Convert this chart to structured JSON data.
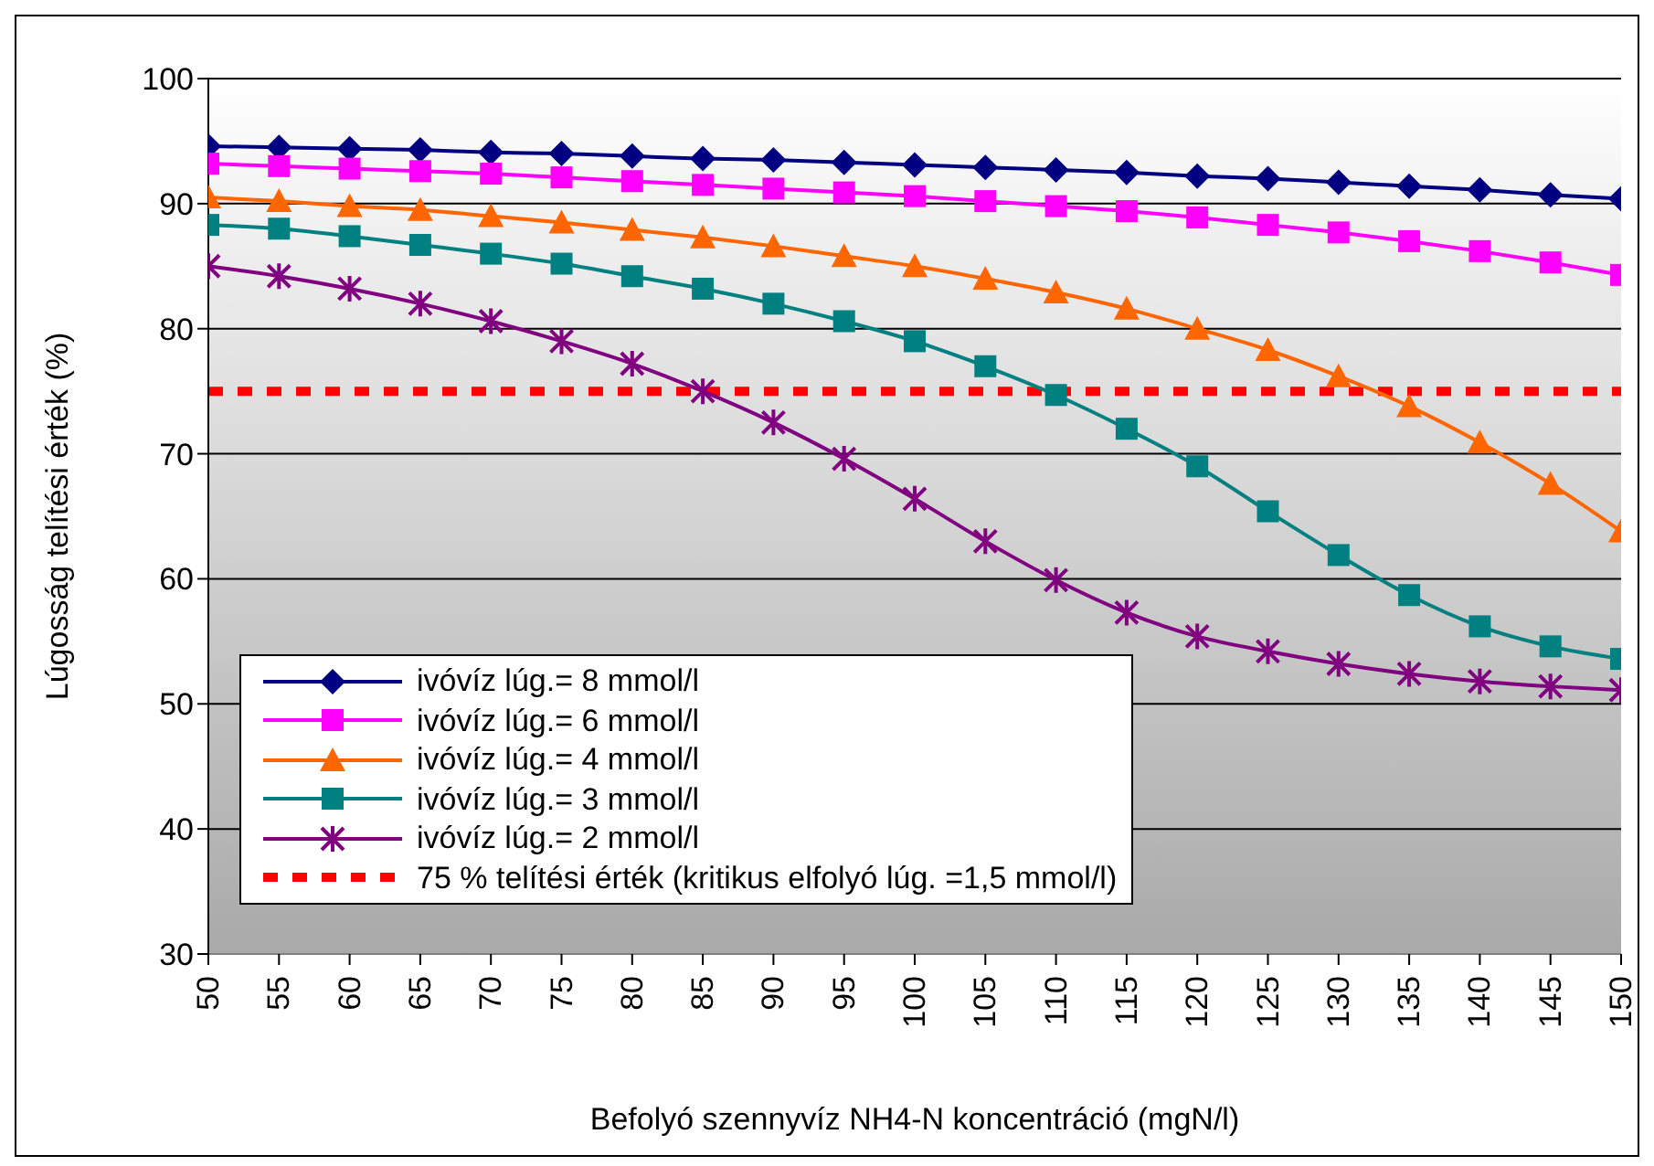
{
  "chart_data": {
    "type": "line",
    "xlabel": "Befolyó szennyvíz NH4-N koncentráció (mgN/l)",
    "ylabel": "Lúgosság telítési érték (%)",
    "x": [
      50,
      55,
      60,
      65,
      70,
      75,
      80,
      85,
      90,
      95,
      100,
      105,
      110,
      115,
      120,
      125,
      130,
      135,
      140,
      145,
      150
    ],
    "series": [
      {
        "name": "ivóvíz lúg.= 8 mmol/l",
        "color": "#000080",
        "marker": "diamond",
        "values": [
          94.6,
          94.5,
          94.4,
          94.3,
          94.1,
          94.0,
          93.8,
          93.6,
          93.5,
          93.3,
          93.1,
          92.9,
          92.7,
          92.5,
          92.2,
          92.0,
          91.7,
          91.4,
          91.1,
          90.7,
          90.4
        ]
      },
      {
        "name": "ivóvíz lúg.= 6 mmol/l",
        "color": "#ff00ff",
        "marker": "square",
        "values": [
          93.2,
          93.0,
          92.8,
          92.6,
          92.4,
          92.1,
          91.8,
          91.5,
          91.2,
          90.9,
          90.6,
          90.2,
          89.8,
          89.4,
          88.9,
          88.3,
          87.7,
          87.0,
          86.2,
          85.3,
          84.3
        ]
      },
      {
        "name": "ivóvíz lúg.= 4 mmol/l",
        "color": "#ff6600",
        "marker": "triangle",
        "values": [
          90.5,
          90.2,
          89.8,
          89.5,
          89.0,
          88.5,
          87.9,
          87.3,
          86.6,
          85.8,
          85.0,
          84.0,
          82.9,
          81.6,
          80.0,
          78.3,
          76.2,
          73.8,
          70.9,
          67.6,
          63.8
        ]
      },
      {
        "name": "ivóvíz lúg.= 3 mmol/l",
        "color": "#008080",
        "marker": "square",
        "values": [
          88.3,
          88.0,
          87.4,
          86.7,
          86.0,
          85.2,
          84.2,
          83.2,
          82.0,
          80.6,
          79.0,
          77.0,
          74.7,
          72.0,
          69.0,
          65.4,
          61.9,
          58.7,
          56.2,
          54.6,
          53.6
        ]
      },
      {
        "name": "ivóvíz lúg.= 2 mmol/l",
        "color": "#800080",
        "marker": "cross",
        "values": [
          85.0,
          84.2,
          83.2,
          82.0,
          80.6,
          79.0,
          77.2,
          75.0,
          72.5,
          69.6,
          66.4,
          63.0,
          59.9,
          57.3,
          55.4,
          54.2,
          53.2,
          52.4,
          51.8,
          51.4,
          51.1
        ]
      }
    ],
    "ref_lines": [
      {
        "axis": "y",
        "value": 75,
        "label": "75 % telítési érték (kritikus elfolyó lúg. =1,5 mmol/l)",
        "color": "#ff0000",
        "line_style": "dashed"
      }
    ],
    "xlim": [
      50,
      150
    ],
    "xticks": [
      50,
      55,
      60,
      65,
      70,
      75,
      80,
      85,
      90,
      95,
      100,
      105,
      110,
      115,
      120,
      125,
      130,
      135,
      140,
      145,
      150
    ],
    "ylim": [
      30,
      100
    ],
    "yticks": [
      30,
      40,
      50,
      60,
      70,
      80,
      90,
      100
    ],
    "grid": "y",
    "legend": "bottom left",
    "line_style": "solid"
  }
}
